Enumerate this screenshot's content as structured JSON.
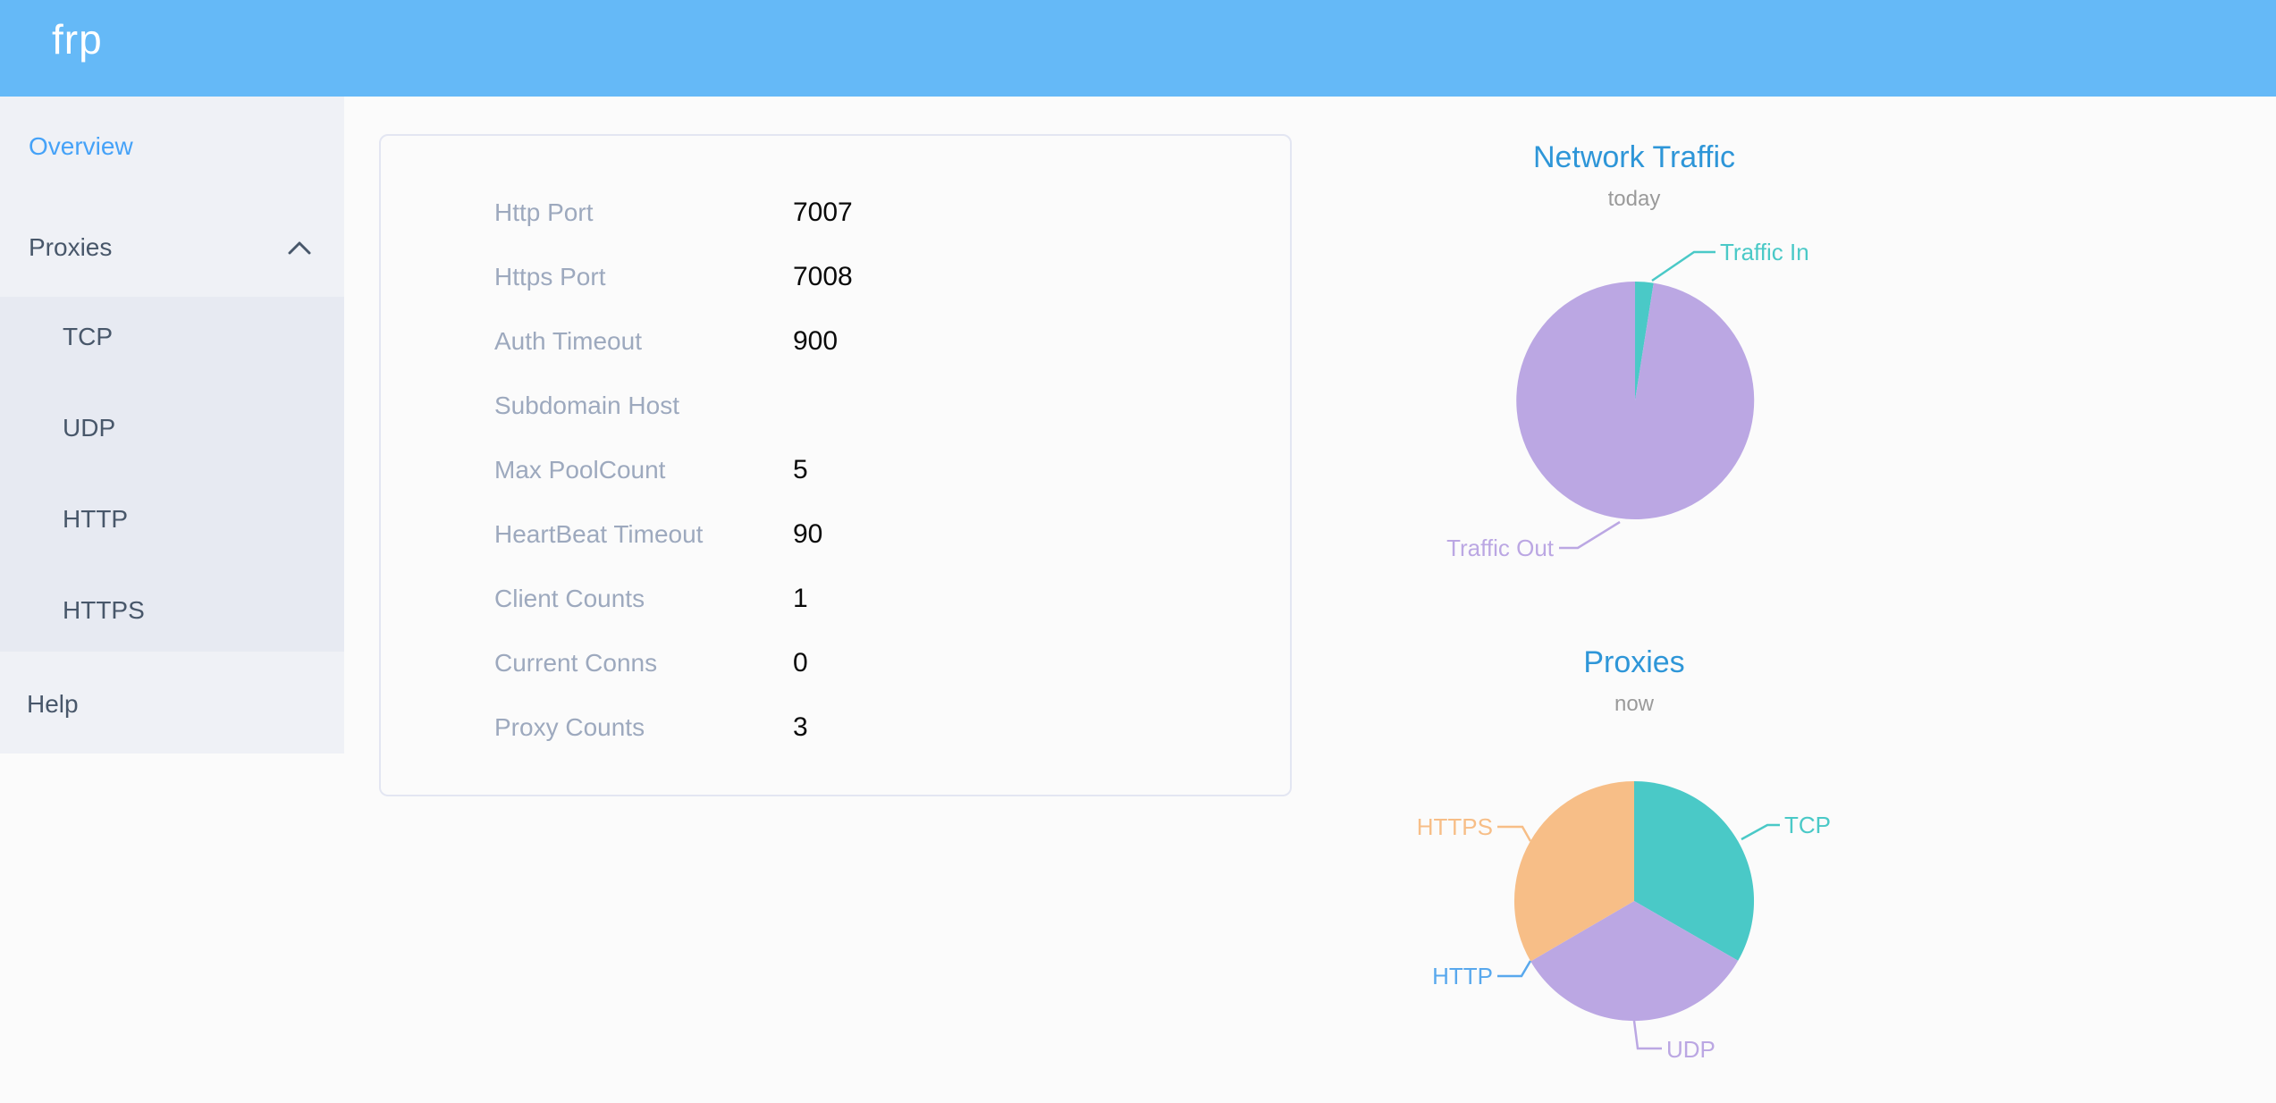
{
  "header": {
    "logo_text": "frp"
  },
  "sidebar": {
    "items": [
      {
        "label": "Overview",
        "active": true
      },
      {
        "label": "Proxies",
        "expanded": true,
        "children": [
          "TCP",
          "UDP",
          "HTTP",
          "HTTPS"
        ]
      },
      {
        "label": "Help"
      }
    ]
  },
  "overview": {
    "rows": [
      {
        "label": "Http Port",
        "value": "7007"
      },
      {
        "label": "Https Port",
        "value": "7008"
      },
      {
        "label": "Auth Timeout",
        "value": "900"
      },
      {
        "label": "Subdomain Host",
        "value": ""
      },
      {
        "label": "Max PoolCount",
        "value": "5"
      },
      {
        "label": "HeartBeat Timeout",
        "value": "90"
      },
      {
        "label": "Client Counts",
        "value": "1"
      },
      {
        "label": "Current Conns",
        "value": "0"
      },
      {
        "label": "Proxy Counts",
        "value": "3"
      }
    ]
  },
  "chart_data": [
    {
      "type": "pie",
      "title": "Network Traffic",
      "subtitle": "today",
      "legend_position": "none",
      "series": [
        {
          "name": "Traffic In",
          "percent": 2.5,
          "color": "#4AC9C7"
        },
        {
          "name": "Traffic Out",
          "percent": 97.5,
          "color": "#BBA7E3"
        }
      ]
    },
    {
      "type": "pie",
      "title": "Proxies",
      "subtitle": "now",
      "legend_position": "none",
      "series": [
        {
          "name": "TCP",
          "value": 1,
          "percent": 33.3,
          "color": "#4AC9C7"
        },
        {
          "name": "UDP",
          "value": 1,
          "percent": 33.3,
          "color": "#BBA7E3"
        },
        {
          "name": "HTTP",
          "value": 0,
          "percent": 0,
          "color": "#58A8ED"
        },
        {
          "name": "HTTPS",
          "value": 1,
          "percent": 33.4,
          "color": "#F7BE87"
        }
      ]
    }
  ],
  "colors": {
    "header_bg": "#65B9F7",
    "sidebar_bg": "#EFF1F6",
    "submenu_bg": "#E7EAF2",
    "active_item": "#45A2F8",
    "chart_title": "#2E96D8"
  }
}
